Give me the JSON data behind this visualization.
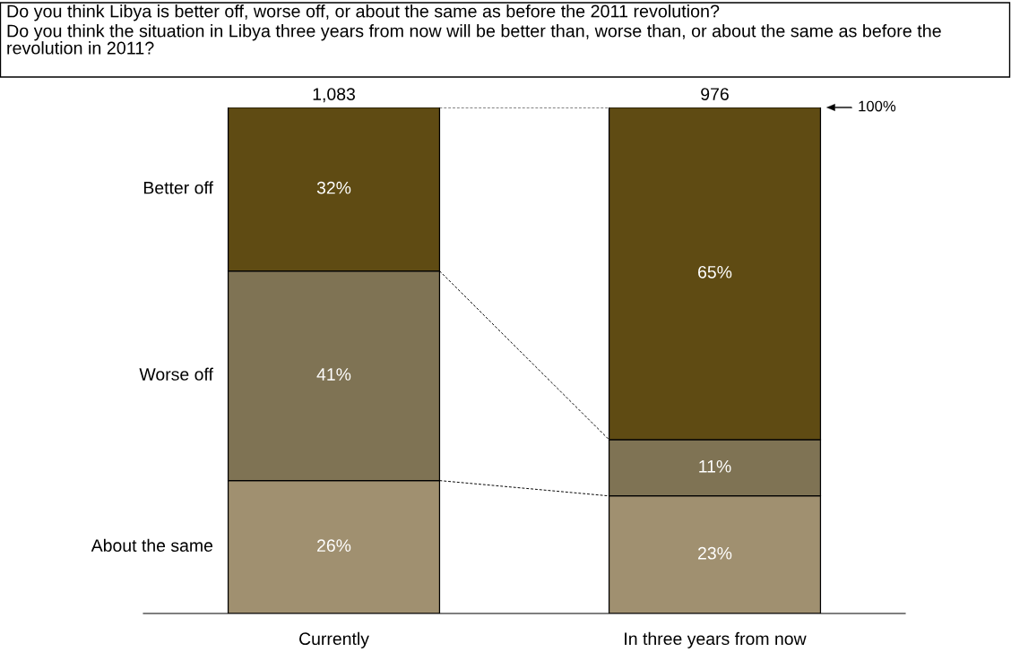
{
  "chart_data": {
    "type": "bar",
    "title": "Do you think Libya is better off, worse off, or about the same as before the 2011 revolution?",
    "subtitle": "Do you think the situation in Libya three years from now will be better than, worse than, or about the same as before the revolution in 2011?",
    "categories": [
      "Currently",
      "In three years from now"
    ],
    "stacked": true,
    "series": [
      {
        "name": "About the same",
        "color": "#a09070",
        "values": [
          26,
          23
        ],
        "value_labels": [
          "26%",
          "23%"
        ]
      },
      {
        "name": "Worse off",
        "color": "#7f7354",
        "values": [
          41,
          11
        ],
        "value_labels": [
          "41%",
          "11%"
        ]
      },
      {
        "name": "Better off",
        "color": "#5f4b13",
        "values": [
          32,
          65
        ],
        "value_labels": [
          "32%",
          "65%"
        ]
      }
    ],
    "annotations": [
      {
        "text": "1,083",
        "x": "Currently",
        "y": 99
      },
      {
        "text": "976",
        "x": "In three years from now",
        "y": 99
      },
      "100%"
    ],
    "tick_labels": "x",
    "legend": false
  }
}
